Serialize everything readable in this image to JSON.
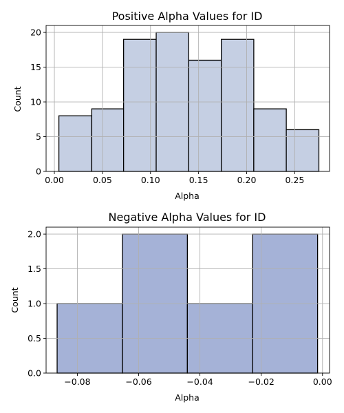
{
  "chart_data": [
    {
      "type": "histogram",
      "title": "Positive Alpha Values for ID",
      "xlabel": "Alpha",
      "ylabel": "Count",
      "xlim": [
        -0.0086,
        0.2862
      ],
      "ylim": [
        0,
        21
      ],
      "xticks": [
        0.0,
        0.05,
        0.1,
        0.15,
        0.2,
        0.25
      ],
      "xtick_labels": [
        "0.00",
        "0.05",
        "0.10",
        "0.15",
        "0.20",
        "0.25"
      ],
      "yticks": [
        0,
        5,
        10,
        15,
        20
      ],
      "ytick_labels": [
        "0",
        "5",
        "10",
        "15",
        "20"
      ],
      "bin_edges": [
        0.0047,
        0.0389,
        0.072,
        0.1059,
        0.1397,
        0.1736,
        0.2074,
        0.2412,
        0.2751
      ],
      "values": [
        8,
        9,
        19,
        20,
        16,
        19,
        9,
        6
      ],
      "bar_color": "#c5cfe3",
      "edge_color": "#000000",
      "grid": true
    },
    {
      "type": "histogram",
      "title": "Negative Alpha Values for ID",
      "xlabel": "Alpha",
      "ylabel": "Count",
      "xlim": [
        -0.0902,
        0.0023
      ],
      "ylim": [
        0,
        2.1
      ],
      "xticks": [
        -0.08,
        -0.06,
        -0.04,
        -0.02,
        0.0
      ],
      "xtick_labels": [
        "−0.08",
        "−0.06",
        "−0.04",
        "−0.02",
        "0.00"
      ],
      "yticks": [
        0,
        0.5,
        1,
        1.5,
        2
      ],
      "ytick_labels": [
        "0.0",
        "0.5",
        "1.0",
        "1.5",
        "2.0"
      ],
      "bin_edges": [
        -0.0866,
        -0.0653,
        -0.0441,
        -0.0228,
        -0.0016
      ],
      "values": [
        1,
        2,
        1,
        2
      ],
      "bar_color": "#a5b2d7",
      "edge_color": "#000000",
      "grid": true
    }
  ]
}
